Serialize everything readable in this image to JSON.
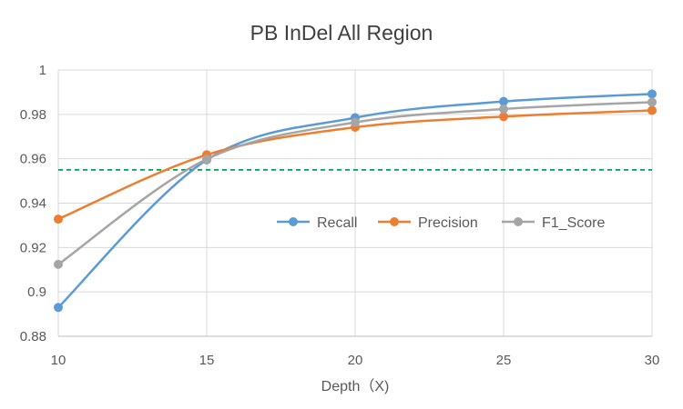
{
  "chart_data": {
    "type": "line",
    "title": "PB InDel All Region",
    "xlabel": "Depth（X)",
    "ylabel": "",
    "x": [
      10,
      15,
      20,
      25,
      30
    ],
    "x_tick_labels": [
      "10",
      "15",
      "20",
      "25",
      "30"
    ],
    "xlim": [
      10,
      30
    ],
    "ylim": [
      0.88,
      1.0
    ],
    "y_ticks": [
      0.88,
      0.9,
      0.92,
      0.94,
      0.96,
      0.98,
      1.0
    ],
    "y_tick_labels": [
      "0.88",
      "0.9",
      "0.92",
      "0.94",
      "0.96",
      "0.98",
      "1"
    ],
    "grid": true,
    "legend_position": "center-right",
    "series": [
      {
        "name": "Recall",
        "color": "#5B9BD5",
        "values": [
          0.893,
          0.9595,
          0.9785,
          0.9858,
          0.9892
        ]
      },
      {
        "name": "Precision",
        "color": "#ED7D31",
        "values": [
          0.9328,
          0.9618,
          0.9742,
          0.979,
          0.9818
        ]
      },
      {
        "name": "F1_Score",
        "color": "#A5A5A5",
        "values": [
          0.9124,
          0.9598,
          0.9764,
          0.9824,
          0.9855
        ]
      }
    ],
    "reference_line": {
      "value": 0.955,
      "color": "#00A050",
      "style": "dashed"
    }
  }
}
